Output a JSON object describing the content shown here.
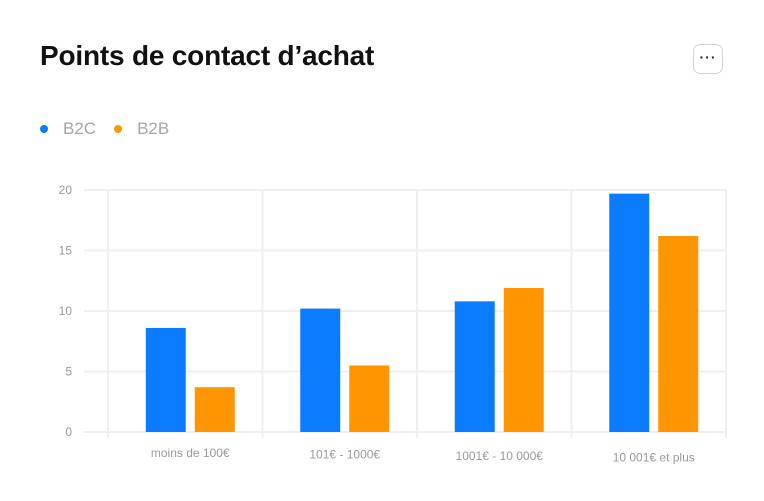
{
  "header": {
    "title": "Points de contact d’achat",
    "more_label": "···"
  },
  "colors": {
    "B2C": "#0a7cff",
    "B2B": "#ff9500",
    "grid": "#efefef",
    "tick": "#9a9a9a"
  },
  "chart_data": {
    "type": "bar",
    "title": "Points de contact d’achat",
    "xlabel": "",
    "ylabel": "",
    "categories": [
      "moins de 100€",
      "101€ - 1000€",
      "1001€ - 10 000€",
      "10 001€ et plus"
    ],
    "series": [
      {
        "name": "B2C",
        "values": [
          8.6,
          10.2,
          10.8,
          19.7
        ]
      },
      {
        "name": "B2B",
        "values": [
          3.7,
          5.5,
          11.9,
          16.2
        ]
      }
    ],
    "yticks": [
      0,
      5,
      10,
      15,
      20
    ],
    "ylim": [
      0,
      20
    ],
    "grid": true,
    "legend": "top-left"
  }
}
